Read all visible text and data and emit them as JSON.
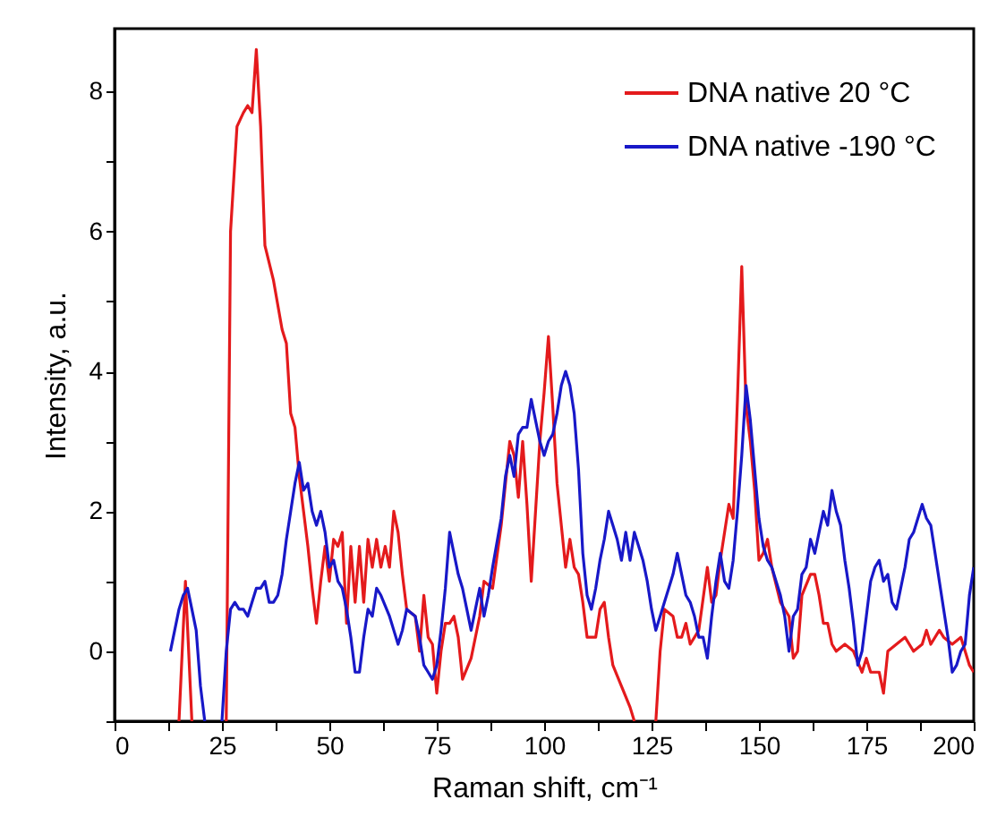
{
  "chart_data": {
    "type": "line",
    "xlabel": "Raman shift, cm⁻¹",
    "ylabel": "Intensity, a.u.",
    "xlim": [
      0,
      200
    ],
    "ylim": [
      -1,
      8.9
    ],
    "xticks": [
      0,
      {
        "value": 12.5,
        "label": null
      },
      25,
      {
        "value": 37.5,
        "label": null
      },
      50,
      {
        "value": 62.5,
        "label": null
      },
      75,
      {
        "value": 87.5,
        "label": null
      },
      100,
      {
        "value": 112.5,
        "label": null
      },
      125,
      {
        "value": 137.5,
        "label": null
      },
      150,
      {
        "value": 162.5,
        "label": null
      },
      175,
      {
        "value": 187.5,
        "label": null
      },
      200
    ],
    "yticks": [
      {
        "value": -1,
        "label": null
      },
      0,
      {
        "value": 1,
        "label": null
      },
      2,
      {
        "value": 3,
        "label": null
      },
      4,
      {
        "value": 5,
        "label": null
      },
      6,
      {
        "value": 7,
        "label": null
      },
      8
    ],
    "grid": false,
    "legend": "top right",
    "marker": "none",
    "line_style": "solid",
    "series": [
      {
        "name": "DNA native 20 °C",
        "color": "#e41a1c",
        "x": [
          15,
          16.5,
          18,
          22,
          26,
          27,
          28.5,
          30,
          31,
          32,
          33,
          34,
          35,
          37,
          39,
          40,
          41,
          42,
          43,
          44,
          45,
          46,
          47,
          48,
          49,
          50,
          51,
          52,
          53,
          54,
          55,
          56,
          57,
          58,
          59,
          60,
          61,
          62,
          63,
          64,
          65,
          66,
          67,
          68,
          70,
          71,
          72,
          73,
          74,
          75,
          76,
          77,
          78,
          79,
          80,
          81,
          83,
          85,
          86,
          88,
          90,
          92,
          93,
          94,
          95,
          96,
          97,
          98,
          99,
          100,
          101,
          102,
          103,
          104,
          105,
          106,
          107,
          108,
          109,
          110,
          112,
          113,
          114,
          115,
          116,
          118,
          120,
          121,
          123,
          126,
          127,
          128,
          130,
          131,
          132,
          133,
          134,
          136,
          138,
          139,
          140,
          141,
          143,
          144,
          145,
          146,
          147,
          148,
          149,
          150,
          151,
          152,
          153,
          155,
          157,
          158,
          159,
          160,
          162,
          163,
          164,
          165,
          166,
          167,
          168,
          170,
          172,
          174,
          175,
          176,
          178,
          179,
          180,
          182,
          184,
          186,
          188,
          189,
          190,
          192,
          193,
          195,
          197,
          198,
          199,
          200
        ],
        "values": [
          -1,
          1.0,
          -1,
          null,
          -1,
          6,
          7.5,
          7.7,
          7.8,
          7.7,
          8.6,
          7.5,
          5.8,
          5.3,
          4.6,
          4.4,
          3.4,
          3.2,
          2.5,
          2.0,
          1.5,
          0.9,
          0.4,
          1.0,
          1.5,
          1.0,
          1.6,
          1.5,
          1.7,
          0.4,
          1.5,
          0.7,
          1.5,
          0.7,
          1.6,
          1.2,
          1.6,
          1.2,
          1.5,
          1.2,
          2.0,
          1.7,
          1.1,
          0.6,
          0.5,
          0,
          0.8,
          0.2,
          0.1,
          -0.6,
          0,
          0.4,
          0.4,
          0.5,
          0.2,
          -0.4,
          -0.1,
          0.5,
          1.0,
          0.9,
          1.8,
          3.0,
          2.8,
          2.2,
          3.0,
          2.1,
          1.0,
          2.0,
          3.0,
          3.7,
          4.5,
          3.5,
          2.4,
          1.8,
          1.2,
          1.6,
          1.2,
          1.1,
          0.7,
          0.2,
          0.2,
          0.6,
          0.7,
          0.2,
          -0.2,
          -0.5,
          -0.8,
          -1.0,
          null,
          -1,
          0,
          0.6,
          0.5,
          0.2,
          0.2,
          0.4,
          0.1,
          0.3,
          1.2,
          0.7,
          0.8,
          1.3,
          2.1,
          1.9,
          3.6,
          5.5,
          3.5,
          3.0,
          2.3,
          1.3,
          1.4,
          1.6,
          1.2,
          0.7,
          0.5,
          -0.1,
          0,
          0.8,
          1.1,
          1.1,
          0.8,
          0.4,
          0.4,
          0.1,
          0,
          0.1,
          0,
          -0.3,
          -0.1,
          -0.3,
          -0.3,
          -0.6,
          0,
          0.1,
          0.2,
          0,
          0.1,
          0.3,
          0.1,
          0.3,
          0.2,
          0.1,
          0.2,
          0,
          -0.2,
          -0.3
        ]
      },
      {
        "name": "DNA native -190 °C",
        "color": "#1818c8",
        "x": [
          13,
          14,
          15,
          16,
          17,
          18,
          19,
          20,
          21,
          23,
          25,
          26,
          27,
          28,
          29,
          30,
          31,
          32,
          33,
          34,
          35,
          36,
          37,
          38,
          39,
          40,
          41,
          42,
          43,
          44,
          45,
          46,
          47,
          48,
          49,
          50,
          51,
          52,
          53,
          54,
          55,
          56,
          57,
          58,
          59,
          60,
          61,
          62,
          64,
          65,
          66,
          67,
          68,
          70,
          71,
          72,
          73,
          74,
          75,
          76,
          77,
          78,
          79,
          80,
          81,
          82,
          83,
          84,
          85,
          86,
          87,
          88,
          90,
          91,
          92,
          93,
          94,
          95,
          96,
          97,
          98,
          99,
          100,
          101,
          102,
          103,
          104,
          105,
          106,
          107,
          108,
          109,
          110,
          111,
          112,
          113,
          114,
          115,
          116,
          117,
          118,
          119,
          120,
          121,
          122,
          123,
          124,
          125,
          126,
          127,
          128,
          129,
          130,
          131,
          132,
          133,
          134,
          135,
          136,
          137,
          138,
          139,
          140,
          141,
          142,
          143,
          144,
          145,
          146,
          147,
          148,
          149,
          150,
          151,
          152,
          153,
          154,
          155,
          156,
          157,
          158,
          159,
          160,
          161,
          162,
          163,
          164,
          165,
          166,
          167,
          168,
          169,
          170,
          171,
          172,
          173,
          174,
          175,
          176,
          177,
          178,
          179,
          180,
          181,
          182,
          183,
          184,
          185,
          186,
          187,
          188,
          189,
          190,
          191,
          192,
          193,
          194,
          195,
          196,
          197,
          198,
          199,
          200
        ],
        "values": [
          0,
          0.3,
          0.6,
          0.8,
          0.9,
          0.6,
          0.3,
          -0.5,
          -1.0,
          null,
          -1,
          0,
          0.6,
          0.7,
          0.6,
          0.6,
          0.5,
          0.7,
          0.9,
          0.9,
          1.0,
          0.7,
          0.7,
          0.8,
          1.1,
          1.6,
          2.0,
          2.4,
          2.7,
          2.3,
          2.4,
          2.0,
          1.8,
          2.0,
          1.7,
          1.2,
          1.3,
          1.0,
          0.9,
          0.6,
          0.2,
          -0.3,
          -0.3,
          0.2,
          0.6,
          0.5,
          0.9,
          0.8,
          0.5,
          0.3,
          0.1,
          0.3,
          0.6,
          0.5,
          0.2,
          -0.2,
          -0.3,
          -0.4,
          -0.2,
          0.3,
          0.9,
          1.7,
          1.4,
          1.1,
          0.9,
          0.6,
          0.3,
          0.6,
          0.9,
          0.5,
          0.8,
          1.2,
          1.9,
          2.5,
          2.8,
          2.5,
          3.1,
          3.2,
          3.2,
          3.6,
          3.3,
          3.0,
          2.8,
          3.0,
          3.1,
          3.4,
          3.8,
          4.0,
          3.8,
          3.4,
          2.6,
          1.4,
          0.8,
          0.6,
          0.9,
          1.3,
          1.6,
          2.0,
          1.8,
          1.6,
          1.3,
          1.7,
          1.3,
          1.7,
          1.5,
          1.3,
          1.0,
          0.6,
          0.3,
          0.5,
          0.7,
          0.9,
          1.1,
          1.4,
          1.1,
          0.8,
          0.7,
          0.5,
          0.2,
          0.2,
          -0.1,
          0.5,
          1.0,
          1.4,
          1.0,
          0.9,
          1.3,
          2.0,
          2.8,
          3.8,
          3.3,
          2.6,
          1.9,
          1.5,
          1.3,
          1.2,
          1.0,
          0.8,
          0.5,
          0.0,
          0.5,
          0.6,
          1.1,
          1.2,
          1.6,
          1.4,
          1.7,
          2.0,
          1.8,
          2.3,
          2.0,
          1.8,
          1.3,
          0.9,
          0.4,
          -0.2,
          0.0,
          0.5,
          1.0,
          1.2,
          1.3,
          1.0,
          1.1,
          0.7,
          0.6,
          0.9,
          1.2,
          1.6,
          1.7,
          1.9,
          2.1,
          1.9,
          1.8,
          1.4,
          1.0,
          0.6,
          0.2,
          -0.3,
          -0.2,
          0,
          0.1,
          0.8,
          1.2
        ]
      }
    ]
  }
}
